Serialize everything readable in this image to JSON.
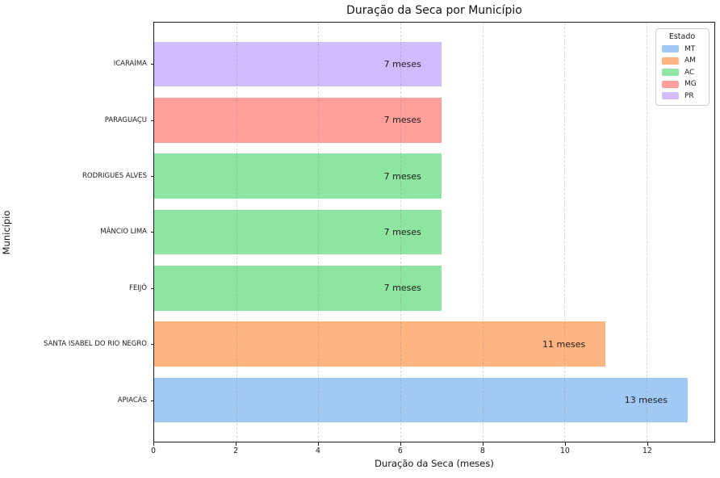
{
  "chart_data": {
    "type": "bar",
    "orientation": "horizontal",
    "title": "Duração da Seca por Município",
    "xlabel": "Duração da Seca (meses)",
    "ylabel": "Município",
    "xlim": [
      0,
      13.65
    ],
    "xticks": [
      0,
      2,
      4,
      6,
      8,
      10,
      12
    ],
    "grid": "vertical-dashed",
    "bars": [
      {
        "municipio": "ICARAÍMA",
        "estado": "PR",
        "value": 7,
        "value_label": "7 meses"
      },
      {
        "municipio": "PARAGUAÇU",
        "estado": "MG",
        "value": 7,
        "value_label": "7 meses"
      },
      {
        "municipio": "RODRIGUES ALVES",
        "estado": "AC",
        "value": 7,
        "value_label": "7 meses"
      },
      {
        "municipio": "MÂNCIO LIMA",
        "estado": "AC",
        "value": 7,
        "value_label": "7 meses"
      },
      {
        "municipio": "FEIJÓ",
        "estado": "AC",
        "value": 7,
        "value_label": "7 meses"
      },
      {
        "municipio": "SANTA ISABEL DO RIO NEGRO",
        "estado": "AM",
        "value": 11,
        "value_label": "11 meses"
      },
      {
        "municipio": "APIACÁS",
        "estado": "MT",
        "value": 13,
        "value_label": "13 meses"
      }
    ],
    "legend": {
      "title": "Estado",
      "position": "upper-right",
      "entries": [
        {
          "label": "MT",
          "color": "#a1c9f4"
        },
        {
          "label": "AM",
          "color": "#ffb482"
        },
        {
          "label": "AC",
          "color": "#8de5a1"
        },
        {
          "label": "MG",
          "color": "#ff9f9b"
        },
        {
          "label": "PR",
          "color": "#d0bbff"
        }
      ]
    },
    "state_colors": {
      "MT": "#a1c9f4",
      "AM": "#ffb482",
      "AC": "#8de5a1",
      "MG": "#ff9f9b",
      "PR": "#d0bbff"
    }
  }
}
